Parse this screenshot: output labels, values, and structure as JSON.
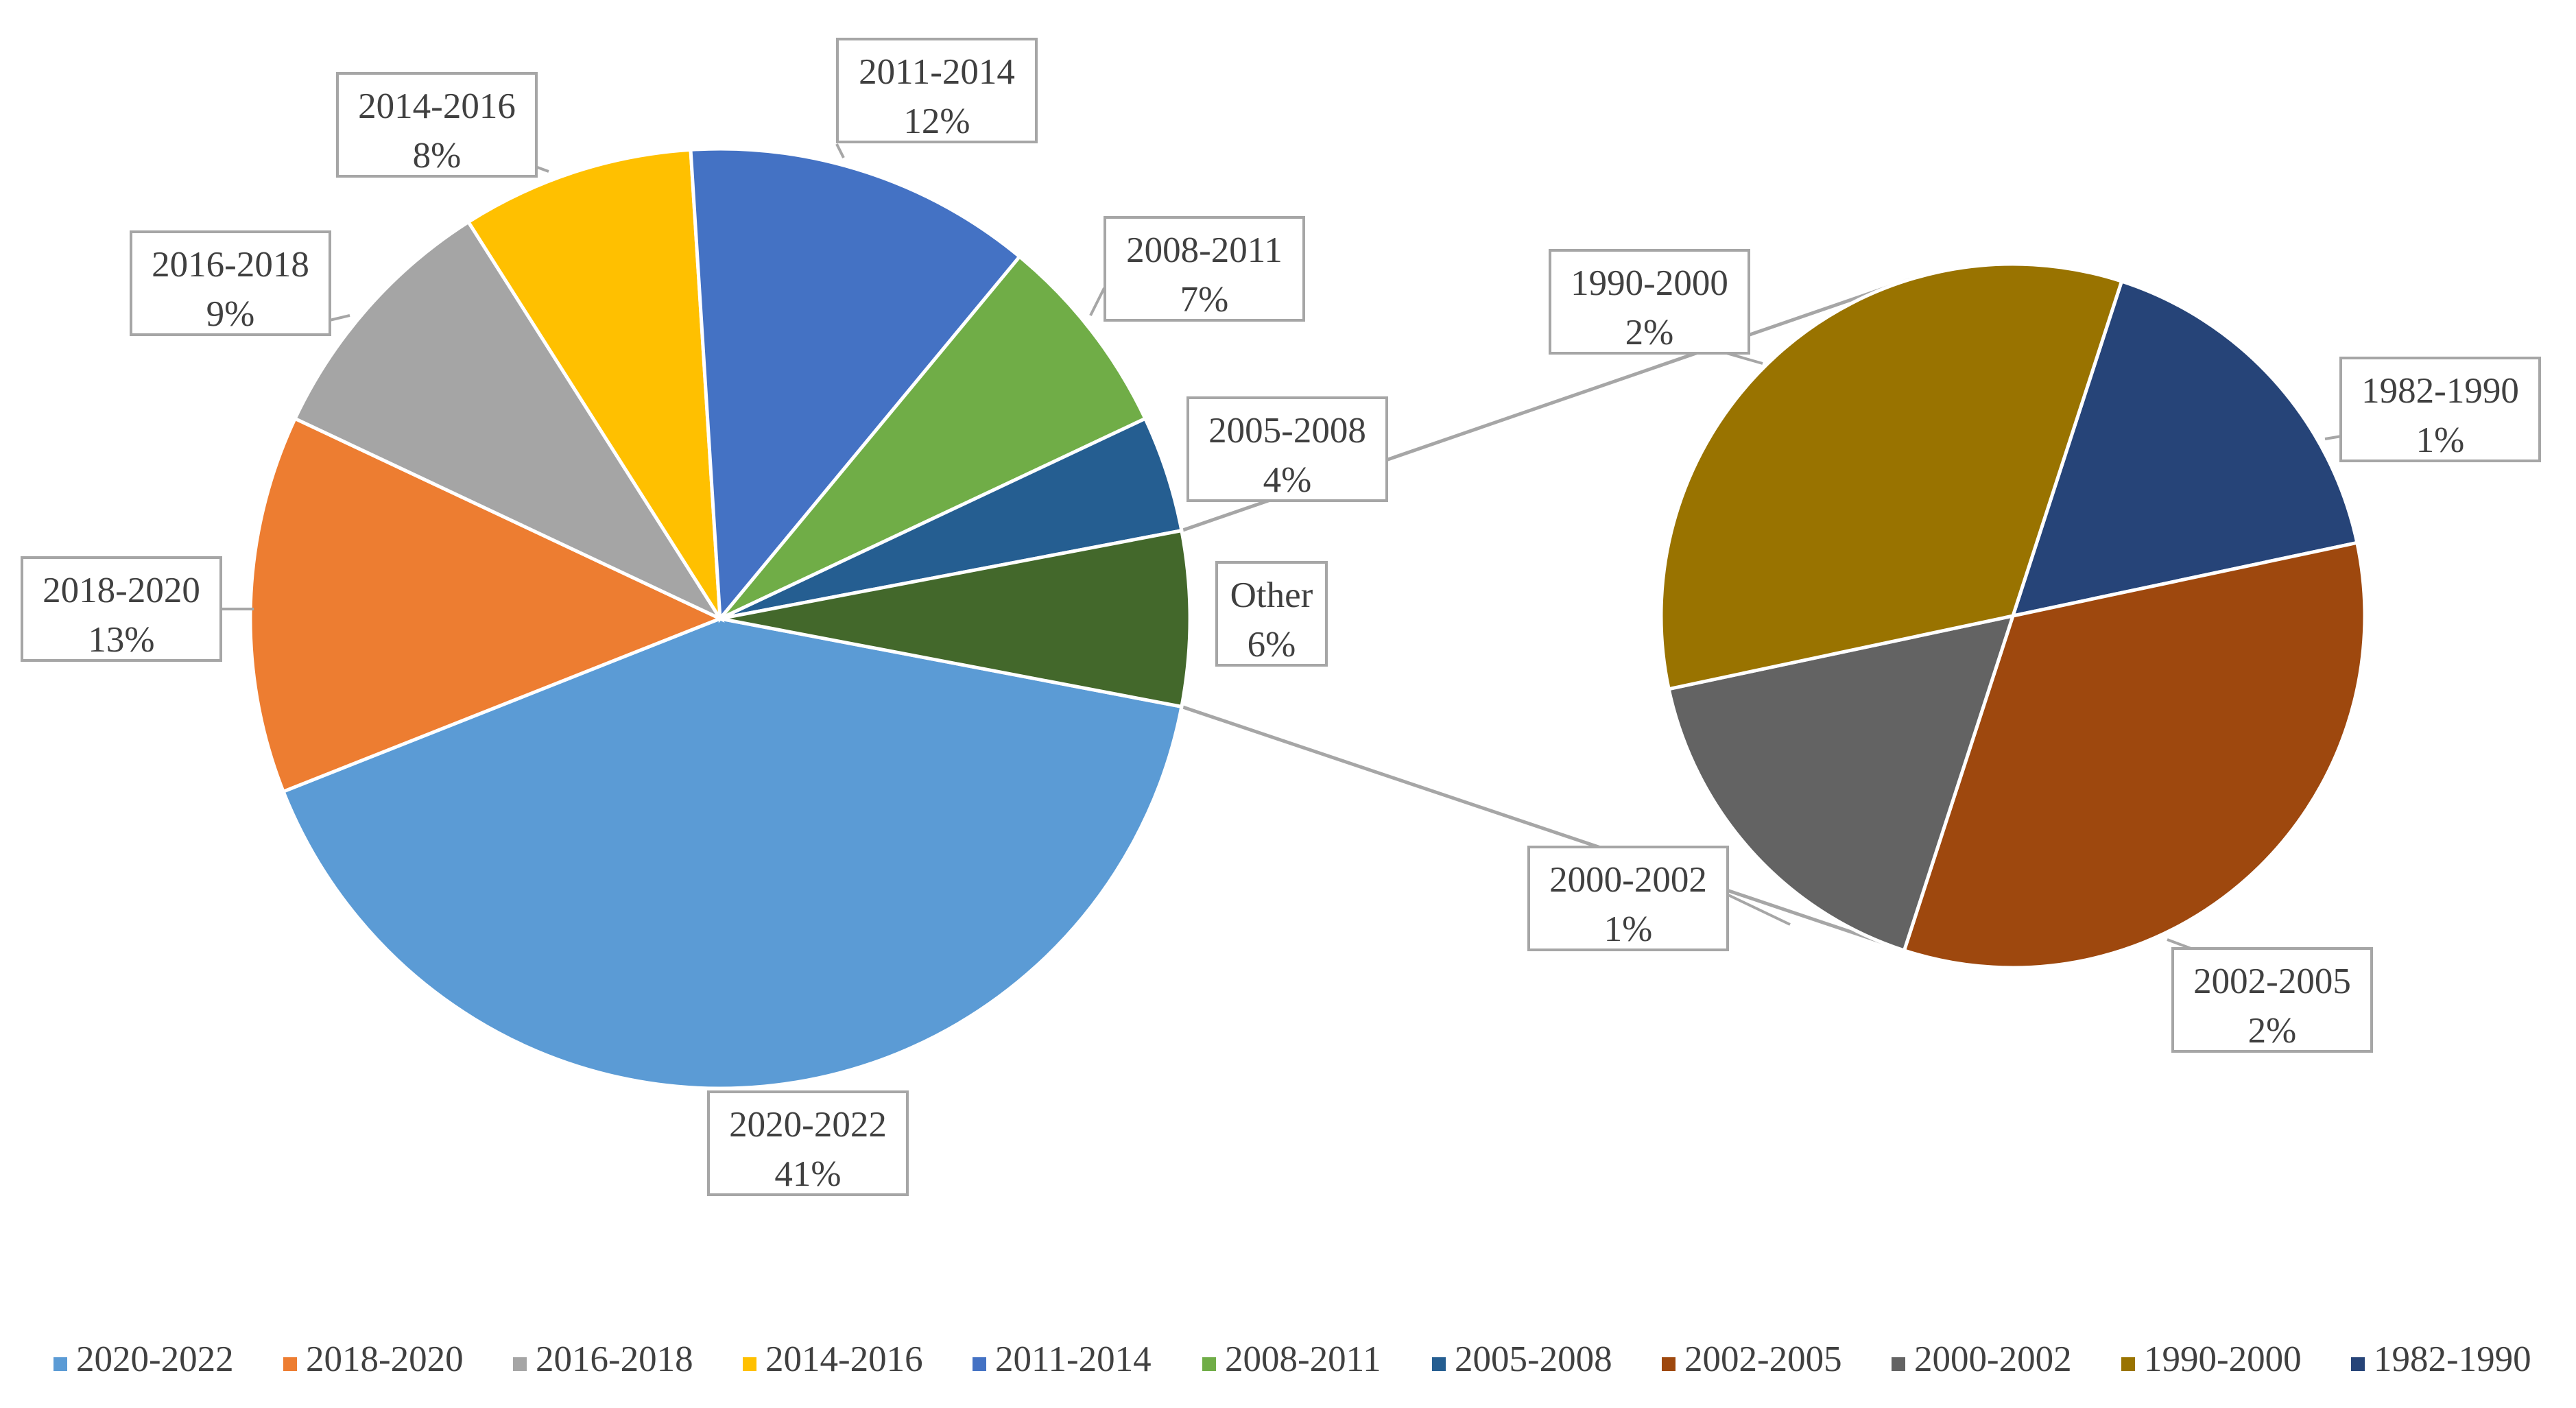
{
  "chart_data": {
    "type": "pie",
    "subtype": "pie-of-pie",
    "title": "",
    "main_pie": {
      "slices": [
        {
          "label": "2020-2022",
          "value": 41,
          "display": "41%",
          "color": "#5B9BD5"
        },
        {
          "label": "2018-2020",
          "value": 13,
          "display": "13%",
          "color": "#ED7D31"
        },
        {
          "label": "2016-2018",
          "value": 9,
          "display": "9%",
          "color": "#A5A5A5"
        },
        {
          "label": "2014-2016",
          "value": 8,
          "display": "8%",
          "color": "#FFC000"
        },
        {
          "label": "2011-2014",
          "value": 12,
          "display": "12%",
          "color": "#4472C4"
        },
        {
          "label": "2008-2011",
          "value": 7,
          "display": "7%",
          "color": "#70AD47"
        },
        {
          "label": "2005-2008",
          "value": 4,
          "display": "4%",
          "color": "#255E91"
        },
        {
          "label": "Other",
          "value": 6,
          "display": "6%",
          "color": "#43682B"
        }
      ]
    },
    "secondary_pie": {
      "slices": [
        {
          "label": "1982-1990",
          "value": 1,
          "display": "1%",
          "color": "#264478"
        },
        {
          "label": "2002-2005",
          "value": 2,
          "display": "2%",
          "color": "#9E480E"
        },
        {
          "label": "2000-2002",
          "value": 1,
          "display": "1%",
          "color": "#636363"
        },
        {
          "label": "1990-2000",
          "value": 2,
          "display": "2%",
          "color": "#997300"
        }
      ]
    },
    "legend": {
      "position": "bottom",
      "entries": [
        {
          "label": "2020-2022",
          "color": "#5B9BD5"
        },
        {
          "label": "2018-2020",
          "color": "#ED7D31"
        },
        {
          "label": "2016-2018",
          "color": "#A5A5A5"
        },
        {
          "label": "2014-2016",
          "color": "#FFC000"
        },
        {
          "label": "2011-2014",
          "color": "#4472C4"
        },
        {
          "label": "2008-2011",
          "color": "#70AD47"
        },
        {
          "label": "2005-2008",
          "color": "#255E91"
        },
        {
          "label": "2002-2005",
          "color": "#9E480E"
        },
        {
          "label": "2000-2002",
          "color": "#636363"
        },
        {
          "label": "1990-2000",
          "color": "#997300"
        },
        {
          "label": "1982-1990",
          "color": "#264478"
        }
      ]
    }
  }
}
